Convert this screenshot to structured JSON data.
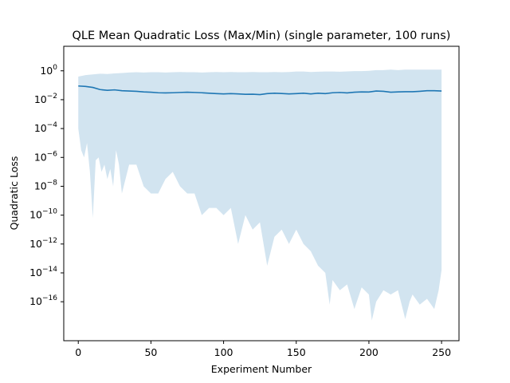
{
  "chart_data": {
    "type": "area",
    "title": "QLE Mean Quadratic Loss (Max/Min) (single parameter, 100 runs)",
    "xlabel": "Experiment Number",
    "ylabel": "Quadratic Loss",
    "xlim": [
      -10,
      262
    ],
    "ylim_exponent": [
      -18.7,
      1.7
    ],
    "yscale": "log",
    "grid": false,
    "x_ticks": [
      0,
      50,
      100,
      150,
      200,
      250
    ],
    "y_tick_exponents": [
      -16,
      -14,
      -12,
      -10,
      -8,
      -6,
      -4,
      -2,
      0
    ],
    "y_tick_base": "10",
    "colors": {
      "line": "#1f77b4",
      "fill": "#1f77b4",
      "fill_opacity": 0.2
    },
    "series": [
      {
        "role": "mean",
        "x": [
          0,
          5,
          10,
          15,
          20,
          25,
          30,
          35,
          40,
          45,
          50,
          55,
          60,
          65,
          70,
          75,
          80,
          85,
          90,
          95,
          100,
          105,
          110,
          115,
          120,
          125,
          130,
          135,
          140,
          145,
          150,
          155,
          160,
          165,
          170,
          175,
          180,
          185,
          190,
          195,
          200,
          205,
          210,
          215,
          220,
          225,
          230,
          235,
          240,
          245,
          250
        ],
        "y_exp": [
          -1.05,
          -1.08,
          -1.15,
          -1.3,
          -1.35,
          -1.32,
          -1.38,
          -1.4,
          -1.42,
          -1.46,
          -1.48,
          -1.52,
          -1.53,
          -1.52,
          -1.5,
          -1.48,
          -1.5,
          -1.52,
          -1.55,
          -1.58,
          -1.6,
          -1.58,
          -1.6,
          -1.63,
          -1.62,
          -1.65,
          -1.58,
          -1.55,
          -1.57,
          -1.6,
          -1.58,
          -1.55,
          -1.6,
          -1.55,
          -1.58,
          -1.52,
          -1.5,
          -1.53,
          -1.48,
          -1.46,
          -1.47,
          -1.4,
          -1.42,
          -1.48,
          -1.46,
          -1.45,
          -1.45,
          -1.42,
          -1.38,
          -1.38,
          -1.4
        ]
      },
      {
        "role": "max",
        "x": [
          0,
          5,
          10,
          15,
          20,
          25,
          30,
          35,
          40,
          45,
          50,
          55,
          60,
          65,
          70,
          75,
          80,
          85,
          90,
          95,
          100,
          105,
          110,
          115,
          120,
          125,
          130,
          135,
          140,
          145,
          150,
          155,
          160,
          165,
          170,
          175,
          180,
          185,
          190,
          195,
          200,
          205,
          210,
          215,
          220,
          225,
          230,
          235,
          240,
          245,
          250
        ],
        "y_exp": [
          -0.4,
          -0.3,
          -0.25,
          -0.2,
          -0.22,
          -0.18,
          -0.15,
          -0.12,
          -0.1,
          -0.12,
          -0.1,
          -0.1,
          -0.12,
          -0.1,
          -0.08,
          -0.1,
          -0.1,
          -0.12,
          -0.1,
          -0.08,
          -0.1,
          -0.08,
          -0.1,
          -0.1,
          -0.08,
          -0.1,
          -0.1,
          -0.08,
          -0.1,
          -0.08,
          -0.05,
          -0.05,
          -0.08,
          -0.06,
          -0.05,
          -0.05,
          -0.06,
          -0.04,
          -0.02,
          -0.02,
          0.0,
          0.05,
          0.05,
          0.08,
          0.05,
          0.08,
          0.08,
          0.08,
          0.08,
          0.08,
          0.08
        ]
      },
      {
        "role": "min",
        "x": [
          0,
          2,
          4,
          6,
          8,
          10,
          12,
          14,
          16,
          18,
          20,
          22,
          24,
          26,
          28,
          30,
          35,
          40,
          45,
          50,
          55,
          60,
          65,
          70,
          75,
          80,
          85,
          90,
          95,
          100,
          105,
          110,
          115,
          120,
          125,
          130,
          135,
          140,
          145,
          150,
          155,
          160,
          165,
          170,
          173,
          175,
          180,
          185,
          190,
          195,
          200,
          202,
          205,
          210,
          215,
          220,
          225,
          228,
          230,
          235,
          240,
          245,
          248,
          250
        ],
        "y_exp": [
          -4,
          -5.5,
          -6,
          -5,
          -7,
          -10.2,
          -6.2,
          -6,
          -7,
          -6.5,
          -7.5,
          -6.8,
          -8,
          -5.5,
          -6.5,
          -8.5,
          -6.5,
          -6.5,
          -8,
          -8.5,
          -8.5,
          -7.5,
          -7,
          -8,
          -8.5,
          -8.5,
          -10,
          -9.5,
          -9.5,
          -10,
          -9.5,
          -12,
          -10,
          -11,
          -10.5,
          -13.5,
          -11.5,
          -11,
          -12,
          -11,
          -12,
          -12.5,
          -13.5,
          -14,
          -16.2,
          -14.5,
          -15.2,
          -14.8,
          -16.5,
          -15,
          -15.5,
          -17.3,
          -16,
          -15.2,
          -15.5,
          -15.2,
          -17.2,
          -16,
          -15.5,
          -16.2,
          -15.8,
          -16.5,
          -15.2,
          -13.8
        ]
      }
    ]
  }
}
